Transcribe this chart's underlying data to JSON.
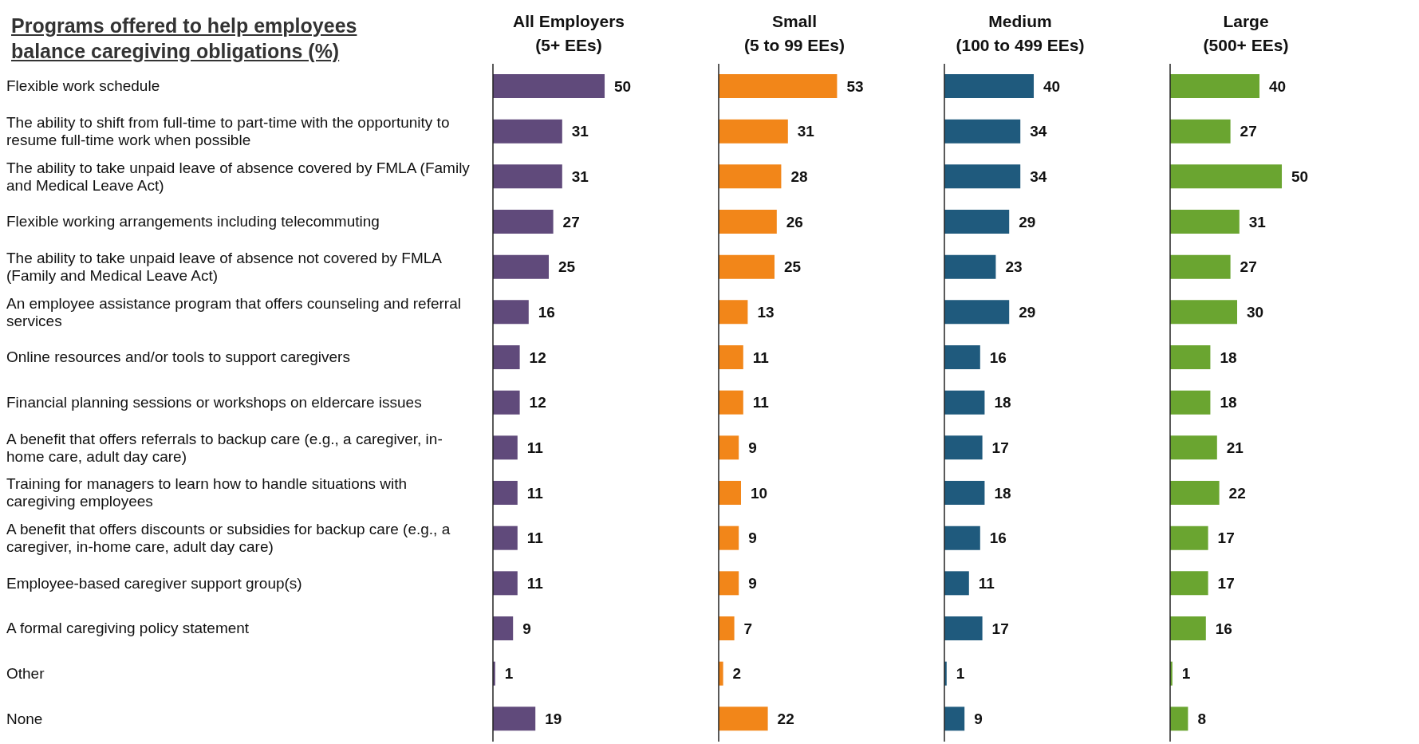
{
  "chart_data": [
    {
      "type": "bar",
      "orientation": "horizontal",
      "title": "All Employers\n(5+ EEs)",
      "annotations": [
        "Programs offered to help employees balance caregiving obligations (%)"
      ],
      "categories": [
        "Flexible work schedule",
        "The ability to shift from full-time to part-time with the opportunity to resume full-time work when possible",
        "The ability to take unpaid leave of absence covered by FMLA (Family and Medical Leave Act)",
        "Flexible working arrangements including telecommuting",
        "The ability to take unpaid leave of absence not covered by FMLA (Family and Medical Leave Act)",
        "An employee assistance program that offers counseling and referral services",
        "Online resources and/or tools to support caregivers",
        "Financial planning sessions or workshops on eldercare issues",
        "A benefit that offers referrals to backup care (e.g., a caregiver, in-home care, adult day care)",
        "Training for managers to learn how to handle situations with caregiving employees",
        "A benefit that offers discounts or subsidies for backup care (e.g., a caregiver, in-home care, adult day care)",
        "Employee-based caregiver support group(s)",
        "A formal caregiving policy statement",
        "Other",
        "None"
      ],
      "values": [
        50,
        31,
        31,
        27,
        25,
        16,
        12,
        12,
        11,
        11,
        11,
        11,
        9,
        1,
        19
      ],
      "color": "#604a7b",
      "data_labels": true,
      "tick_labels": "y"
    },
    {
      "type": "bar",
      "orientation": "horizontal",
      "title": "Small\n(5 to 99 EEs)",
      "values": [
        53,
        31,
        28,
        26,
        25,
        13,
        11,
        11,
        9,
        10,
        9,
        9,
        7,
        2,
        22
      ],
      "color": "#f28619",
      "data_labels": true,
      "tick_labels": false
    },
    {
      "type": "bar",
      "orientation": "horizontal",
      "title": "Medium\n(100 to 499 EEs)",
      "values": [
        40,
        34,
        34,
        29,
        23,
        29,
        16,
        18,
        17,
        18,
        16,
        11,
        17,
        1,
        9
      ],
      "color": "#1f5a7d",
      "data_labels": true,
      "tick_labels": false
    },
    {
      "type": "bar",
      "orientation": "horizontal",
      "title": "Large\n(500+ EEs)",
      "values": [
        40,
        27,
        50,
        31,
        27,
        30,
        18,
        18,
        21,
        22,
        17,
        17,
        16,
        1,
        8
      ],
      "color": "#6aa530",
      "data_labels": true,
      "tick_labels": false
    }
  ]
}
